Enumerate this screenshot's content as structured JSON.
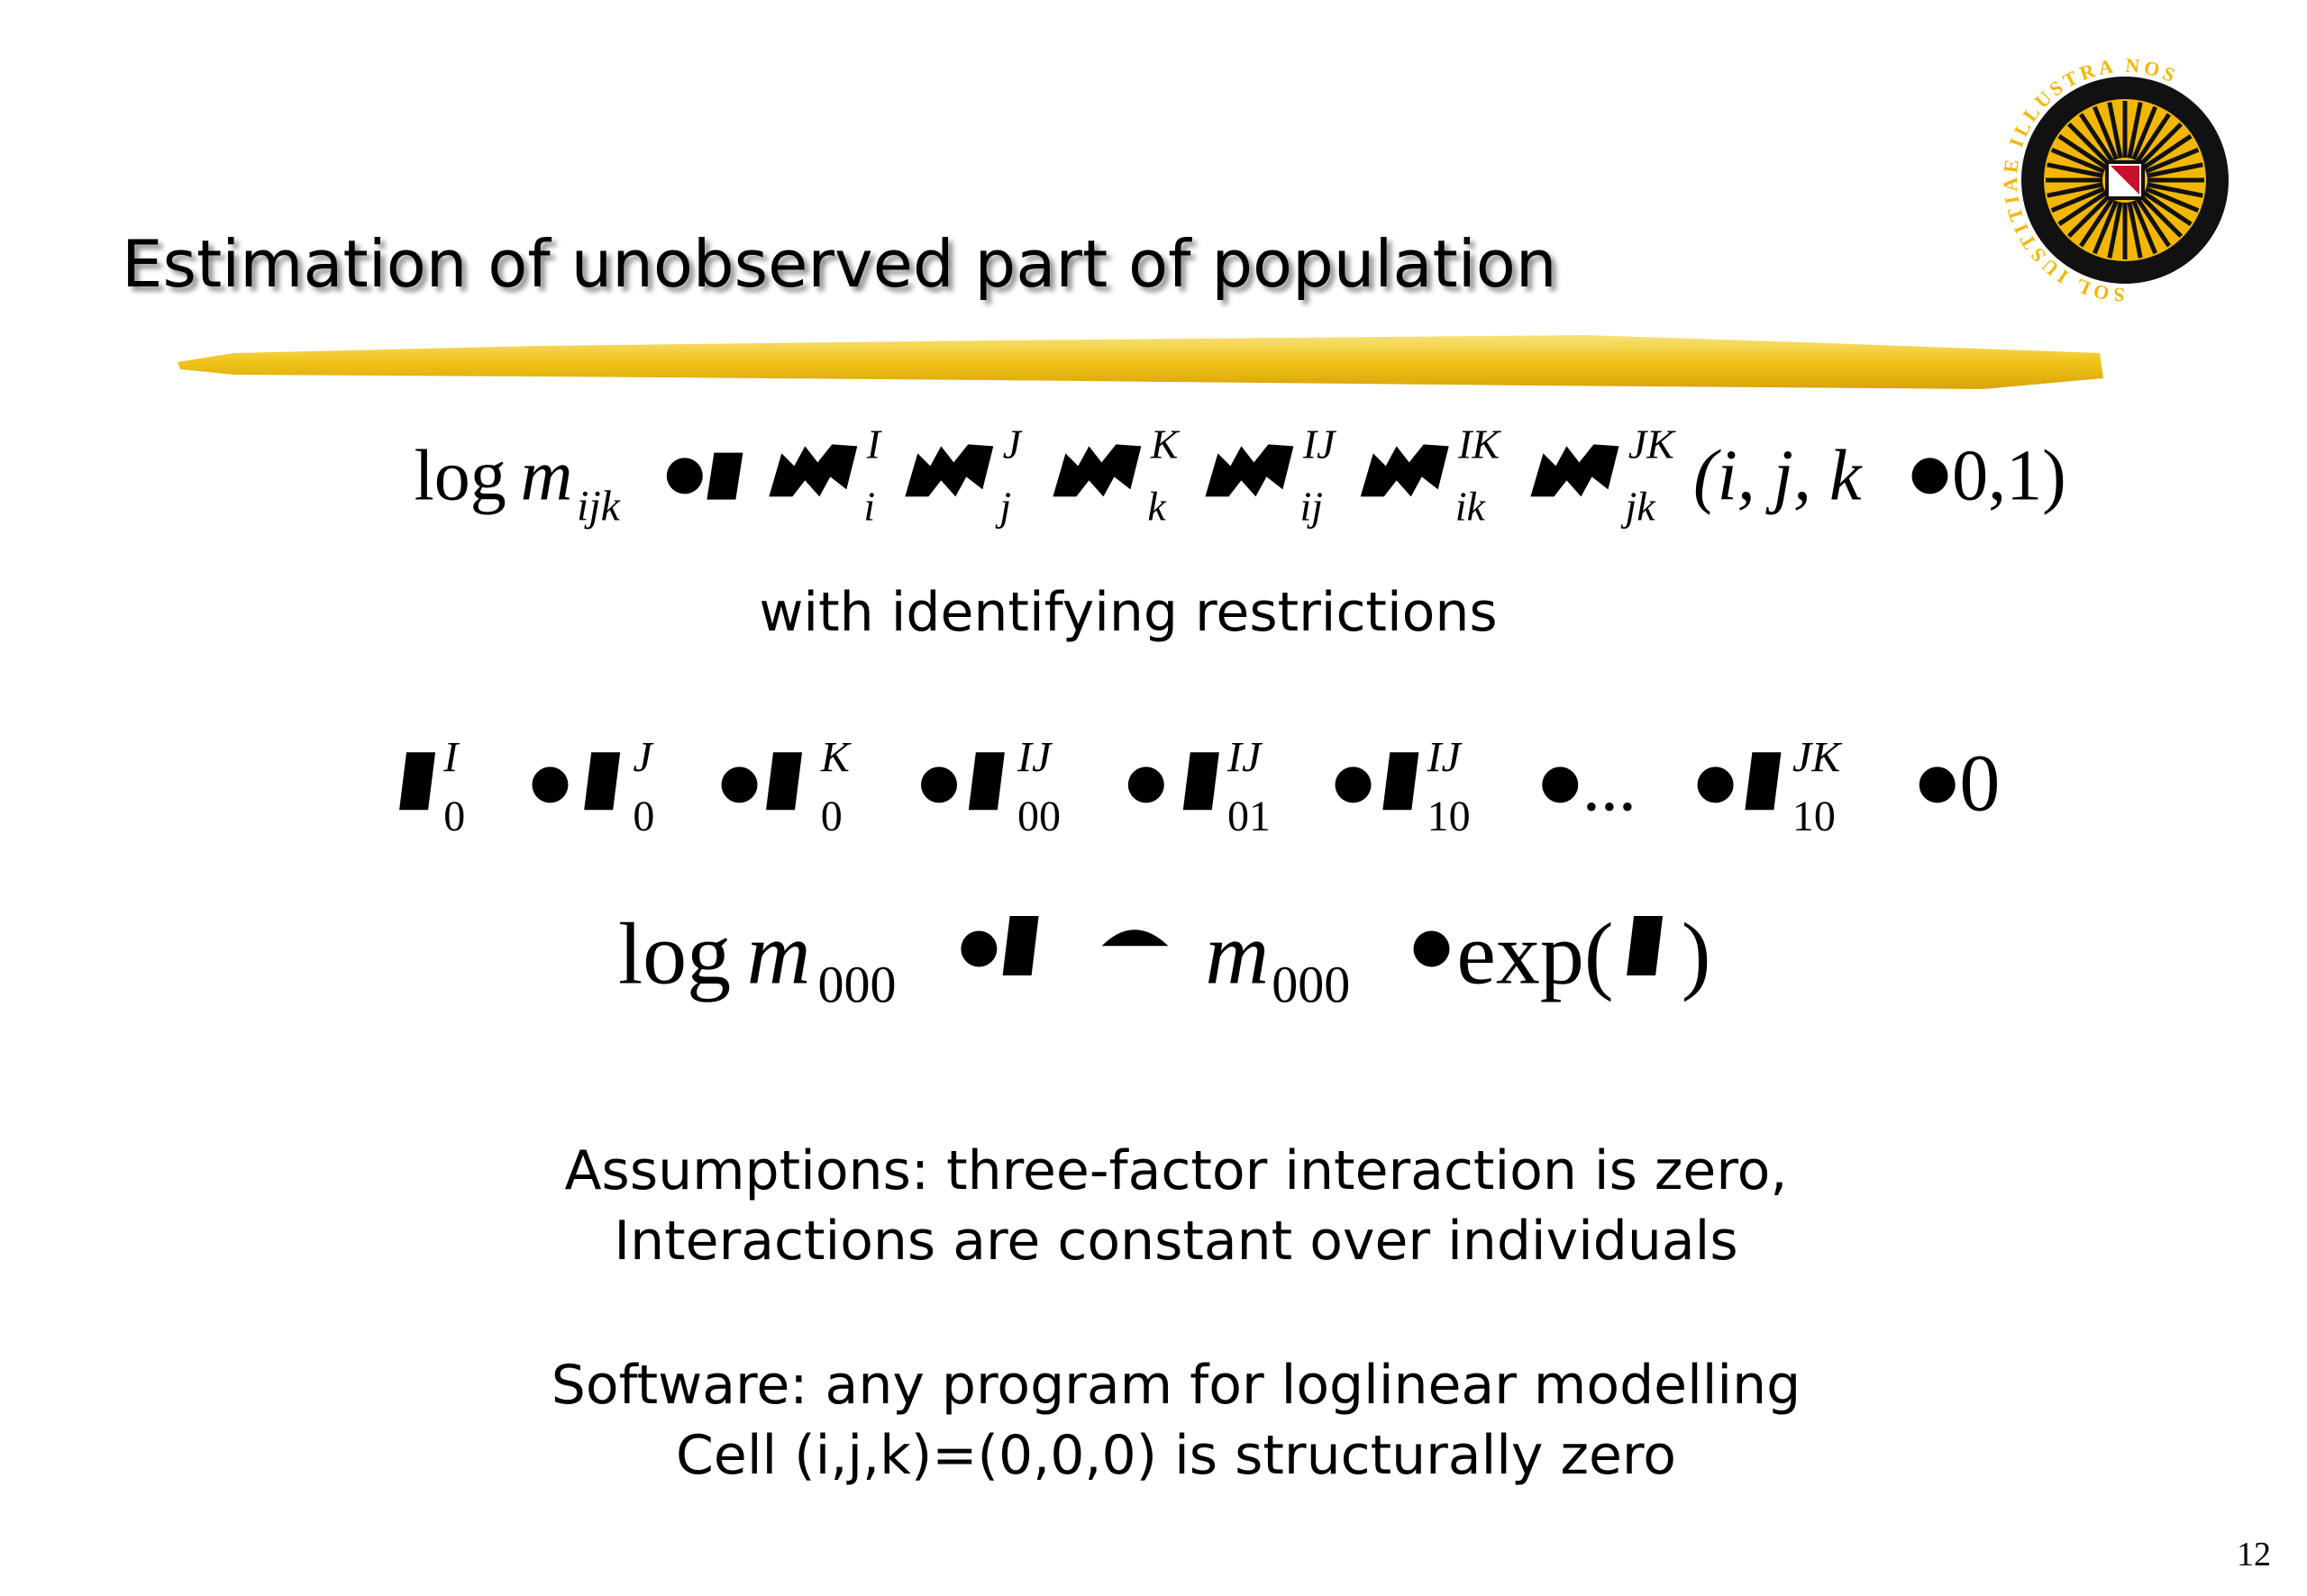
{
  "title": "Estimation of unobserved part of population",
  "logo_text": "SOL IUSTITIAE ILLUSTRA NOS",
  "formula1": {
    "log": "log",
    "m": "m",
    "m_sub": "ijk",
    "sups": [
      "I",
      "J",
      "K",
      "IJ",
      "IK",
      "JK"
    ],
    "subs": [
      "i",
      "j",
      "k",
      "ij",
      "ik",
      "jk"
    ],
    "args": "(i, j, k",
    "range": "0,1)"
  },
  "restrictions_intro": "with identifying restrictions",
  "formula2": {
    "sups": [
      "I",
      "J",
      "K",
      "IJ",
      "IJ",
      "IJ",
      "JK"
    ],
    "subs": [
      "0",
      "0",
      "0",
      "00",
      "01",
      "10",
      "10"
    ],
    "ellipsis": "...",
    "rhs": "0"
  },
  "formula3": {
    "log": "log",
    "m": "m",
    "m_sub": "000",
    "m2": "m",
    "m2_sub": "000",
    "exp": "exp(",
    "close": ")"
  },
  "assumptions": [
    "Assumptions: three-factor interaction is zero,",
    "Interactions are constant over individuals"
  ],
  "software": [
    "Software: any program for loglinear modelling",
    "Cell (i,j,k)=(0,0,0) is structurally zero"
  ],
  "page_number": "12"
}
